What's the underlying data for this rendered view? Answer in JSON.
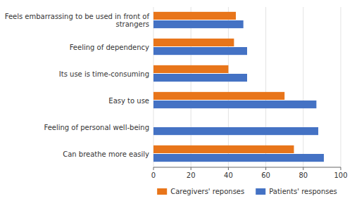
{
  "chart_data": {
    "type": "bar",
    "orientation": "horizontal",
    "categories": [
      "Feels embarrassing to be used in front of\nstrangers",
      "Feeling of dependency",
      "Its use is time-consuming",
      "Easy to use",
      "Feeling of personal well-being",
      "Can breathe more easily"
    ],
    "series": [
      {
        "name": "Caregivers' reponses",
        "color": "#E8751A",
        "values": [
          44,
          43,
          40,
          70,
          0,
          75
        ]
      },
      {
        "name": "Patients' responses",
        "color": "#4472C4",
        "values": [
          48,
          50,
          50,
          87,
          88,
          91
        ]
      }
    ],
    "xlim": [
      0,
      100
    ],
    "xticks": [
      0,
      20,
      40,
      60,
      80,
      100
    ],
    "grid": true,
    "legend": "bottom"
  }
}
